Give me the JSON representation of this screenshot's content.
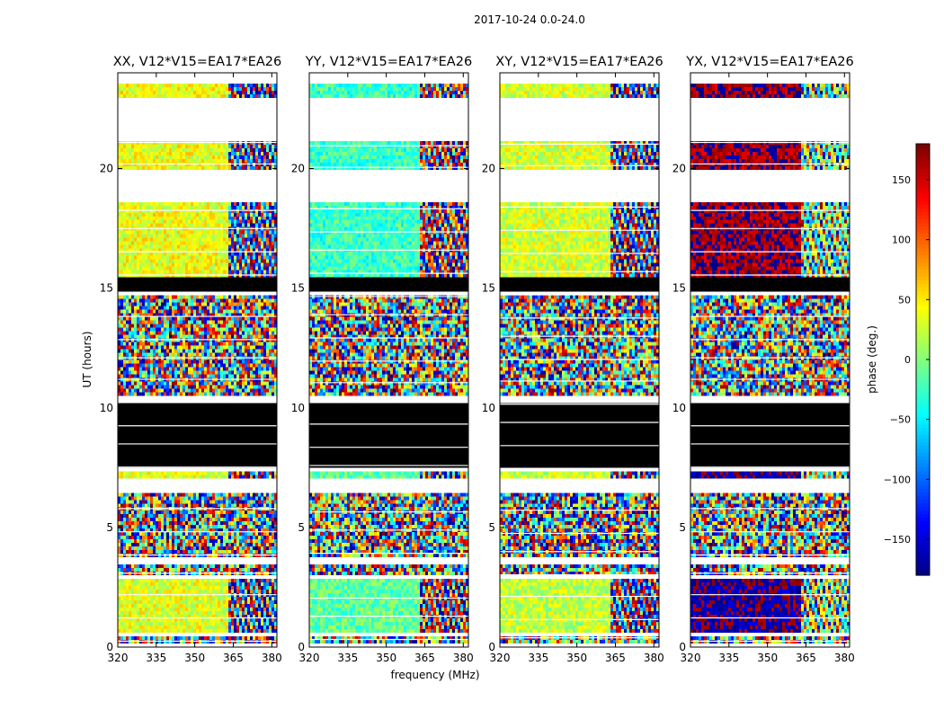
{
  "figure_title": "2017-10-24 0.0-24.0",
  "chart_data": {
    "type": "heatmap",
    "title": "2017-10-24 0.0-24.0",
    "xlabel": "frequency (MHz)",
    "ylabel": "UT (hours)",
    "xlim": [
      320,
      382
    ],
    "ylim": [
      0,
      24
    ],
    "x_ticks": [
      320,
      335,
      350,
      365,
      380
    ],
    "y_ticks": [
      0,
      5,
      10,
      15,
      20
    ],
    "colorbar": {
      "label": "phase (deg.)",
      "range": [
        -180,
        180
      ],
      "ticks": [
        150,
        100,
        50,
        0,
        -50,
        -100,
        -150
      ],
      "tick_labels": [
        "150",
        "100",
        "50",
        "0",
        "−50",
        "−100",
        "−150"
      ],
      "colormap": "jet",
      "stops": [
        "#00007f",
        "#0000ff",
        "#007fff",
        "#00ffff",
        "#7fff7f",
        "#ffff00",
        "#ff7f00",
        "#ff0000",
        "#7f0000"
      ]
    },
    "flagged_color": "#000000",
    "panels": [
      {
        "title": "XX, V12*V15=EA17*EA26",
        "mean_phase_deg": 35,
        "late_phase_deg": 40
      },
      {
        "title": "YY, V12*V15=EA17*EA26",
        "mean_phase_deg": -10,
        "late_phase_deg": -25
      },
      {
        "title": "XY, V12*V15=EA17*EA26",
        "mean_phase_deg": 25,
        "late_phase_deg": 30
      },
      {
        "title": "YX, V12*V15=EA17*EA26",
        "mean_phase_deg": -170,
        "late_phase_deg": 170
      }
    ],
    "data_bands_hours": {
      "noise": [
        [
          0.1,
          0.5
        ],
        [
          3.0,
          3.5
        ],
        [
          3.7,
          6.5
        ],
        [
          10.5,
          14.7
        ]
      ],
      "coherent": [
        [
          0.6,
          2.8
        ],
        [
          7.1,
          7.4
        ],
        [
          15.5,
          18.6
        ],
        [
          19.9,
          21.2
        ],
        [
          22.9,
          23.6
        ]
      ],
      "flagged_black": [
        [
          7.5,
          10.2
        ],
        [
          14.8,
          15.4
        ]
      ],
      "blank": [
        [
          6.5,
          7.0
        ],
        [
          21.5,
          22.6
        ]
      ]
    }
  }
}
